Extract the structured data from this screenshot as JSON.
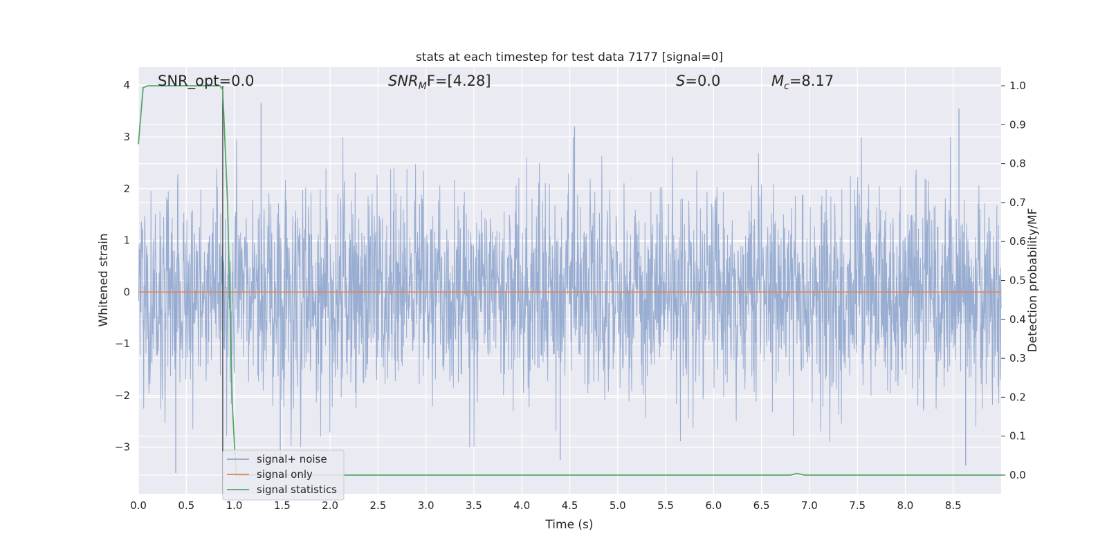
{
  "chart_data": {
    "type": "line",
    "title": "stats at each timestep for test data 7177 [signal=0]",
    "xlabel": "Time (s)",
    "ylabel_left": "Whitened strain",
    "ylabel_right": "Detection probability/MF",
    "xlim": [
      0.0,
      9.0
    ],
    "ylim_left": [
      -3.9,
      4.35
    ],
    "ylim_right": [
      -0.048,
      1.048
    ],
    "x_ticks": [
      "0.0",
      "0.5",
      "1.0",
      "1.5",
      "2.0",
      "2.5",
      "3.0",
      "3.5",
      "4.0",
      "4.5",
      "5.0",
      "5.5",
      "6.0",
      "6.5",
      "7.0",
      "7.5",
      "8.0",
      "8.5"
    ],
    "y_ticks_left": [
      "4",
      "3",
      "2",
      "1",
      "0",
      "−1",
      "−2",
      "−3"
    ],
    "y_ticks_right": [
      "1.0",
      "0.9",
      "0.8",
      "0.7",
      "0.6",
      "0.5",
      "0.4",
      "0.3",
      "0.2",
      "0.1",
      "0.0"
    ],
    "grid": true,
    "legend_position": "lower-left",
    "annotations": {
      "snr_opt": "SNR_opt=0.0",
      "snr_mf_main": "SNR",
      "snr_mf_sub": "M",
      "snr_mf_rest": "F=[4.28]",
      "s_main": "S",
      "s_rest": "=0.0",
      "mc_main": "M",
      "mc_sub": "c",
      "mc_rest": "=8.17"
    },
    "marker_line_x": 0.88,
    "series": [
      {
        "name": "signal+ noise",
        "axis": "left",
        "color": "#8fa6cd",
        "description_values": "dense white noise approx N(0,1) with peaks near ±3.6",
        "peaks": [
          [
            1.28,
            3.65
          ],
          [
            4.55,
            3.2
          ],
          [
            8.56,
            3.55
          ],
          [
            0.39,
            -3.5
          ],
          [
            4.4,
            -3.25
          ],
          [
            8.63,
            -3.35
          ],
          [
            1.48,
            -3.2
          ]
        ]
      },
      {
        "name": "signal only",
        "axis": "left",
        "color": "#dd8452",
        "x": [
          0.0,
          9.0
        ],
        "y": [
          0.0,
          0.0
        ]
      },
      {
        "name": "signal statistics",
        "axis": "right",
        "color": "#55a868",
        "x": [
          0.0,
          0.05,
          0.1,
          0.2,
          0.3,
          0.5,
          0.7,
          0.85,
          0.88,
          0.93,
          0.98,
          1.02,
          1.1,
          2.0,
          4.0,
          6.0,
          6.8,
          6.87,
          6.95,
          7.5,
          9.0
        ],
        "y": [
          0.85,
          0.995,
          1.0,
          1.0,
          1.0,
          1.0,
          1.0,
          1.0,
          0.99,
          0.7,
          0.18,
          0.0,
          0.0,
          0.0,
          0.0,
          0.0,
          0.0,
          0.004,
          0.0,
          0.0,
          0.0
        ]
      }
    ]
  }
}
